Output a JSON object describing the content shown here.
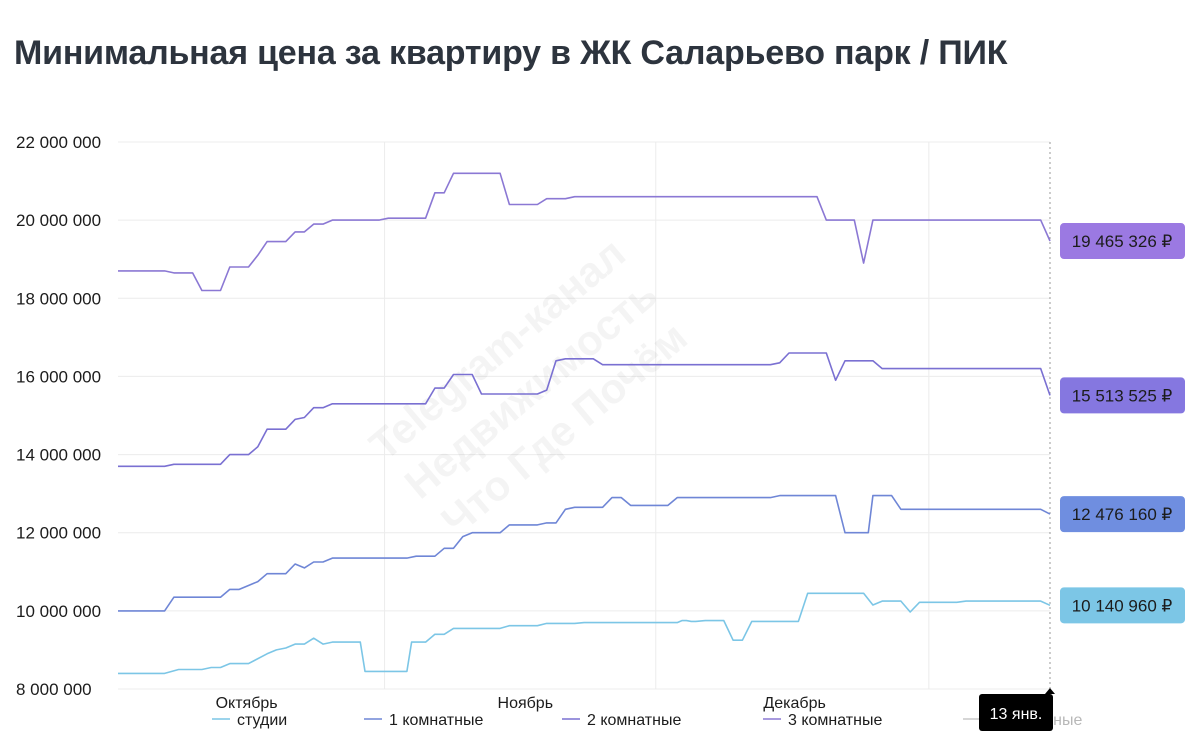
{
  "header": {
    "title": "Минимальная цена за квартиру в ЖК Саларьево парк / ПИК"
  },
  "watermark": [
    "Telegram-канал",
    "Недвижимость",
    "Что Где Почём"
  ],
  "tooltip": {
    "date_label": "13 янв."
  },
  "colors": {
    "studio": "#7cc6e6",
    "room1": "#6f86d6",
    "room2": "#7a70d2",
    "room3": "#8b78d4",
    "grid": "#ececec",
    "badge_studio": "#7cc6e6",
    "badge_room1": "#6f8ee0",
    "badge_room2": "#8577e0",
    "badge_room3": "#9b79e2",
    "tooltip_bg": "#000000"
  },
  "chart_data": {
    "type": "line",
    "title": "Минимальная цена за квартиру в ЖК Саларьево парк / ПИК",
    "xlabel": "",
    "ylabel": "",
    "x_range": [
      0,
      100
    ],
    "x_unit_note": "",
    "ylim": [
      8000000,
      22000000
    ],
    "y_ticks": [
      8000000,
      10000000,
      12000000,
      14000000,
      16000000,
      18000000,
      20000000,
      22000000
    ],
    "y_tick_labels": [
      "8 000 000",
      "10 000 000",
      "12 000 000",
      "14 000 000",
      "16 000 000",
      "18 000 000",
      "20 000 000",
      "22 000 000"
    ],
    "x_ticks": [
      {
        "label": "Октябрь",
        "x": 13.8
      },
      {
        "label": "Ноябрь",
        "x": 43.7
      },
      {
        "label": "Декабрь",
        "x": 72.6
      }
    ],
    "x_grid": [
      28.6,
      57.7,
      87.0
    ],
    "grid": true,
    "legend_position": "bottom",
    "legend": [
      "студии",
      "1 комнатные",
      "2 комнатные",
      "3 комнатные",
      "4 комнатные"
    ],
    "series": [
      {
        "name": "студии",
        "color_key": "studio",
        "end_label": "10 140 960 ₽",
        "points": [
          [
            0,
            8400000
          ],
          [
            5,
            8400000
          ],
          [
            6.5,
            8500000
          ],
          [
            9,
            8500000
          ],
          [
            10,
            8550000
          ],
          [
            11,
            8550000
          ],
          [
            12,
            8650000
          ],
          [
            14,
            8650000
          ],
          [
            16,
            8900000
          ],
          [
            17,
            9000000
          ],
          [
            18,
            9050000
          ],
          [
            19,
            9150000
          ],
          [
            20,
            9150000
          ],
          [
            21,
            9300000
          ],
          [
            22,
            9150000
          ],
          [
            23,
            9200000
          ],
          [
            26,
            9200000
          ],
          [
            26.5,
            8450000
          ],
          [
            31,
            8450000
          ],
          [
            31.5,
            9200000
          ],
          [
            33,
            9200000
          ],
          [
            34,
            9400000
          ],
          [
            35,
            9400000
          ],
          [
            36,
            9550000
          ],
          [
            41,
            9550000
          ],
          [
            42,
            9620000
          ],
          [
            45,
            9620000
          ],
          [
            46,
            9680000
          ],
          [
            49,
            9680000
          ],
          [
            50,
            9700000
          ],
          [
            60,
            9700000
          ],
          [
            60.5,
            9750000
          ],
          [
            61,
            9750000
          ],
          [
            61.5,
            9730000
          ],
          [
            62,
            9730000
          ],
          [
            63,
            9750000
          ],
          [
            65,
            9750000
          ],
          [
            66,
            9250000
          ],
          [
            67,
            9250000
          ],
          [
            68,
            9730000
          ],
          [
            73,
            9730000
          ],
          [
            74,
            10450000
          ],
          [
            75,
            10450000
          ],
          [
            77,
            10450000
          ],
          [
            80,
            10450000
          ],
          [
            81,
            10150000
          ],
          [
            82,
            10250000
          ],
          [
            84,
            10250000
          ],
          [
            85,
            9970000
          ],
          [
            86,
            10220000
          ],
          [
            87,
            10220000
          ],
          [
            90,
            10220000
          ],
          [
            91,
            10250000
          ],
          [
            98,
            10250000
          ],
          [
            99,
            10250000
          ],
          [
            100,
            10140960
          ]
        ]
      },
      {
        "name": "1 комнатные",
        "color_key": "room1",
        "end_label": "12 476 160 ₽",
        "points": [
          [
            0,
            10000000
          ],
          [
            5,
            10000000
          ],
          [
            6,
            10350000
          ],
          [
            11,
            10350000
          ],
          [
            12,
            10550000
          ],
          [
            13,
            10550000
          ],
          [
            14,
            10650000
          ],
          [
            15,
            10750000
          ],
          [
            16,
            10950000
          ],
          [
            18,
            10950000
          ],
          [
            19,
            11200000
          ],
          [
            20,
            11100000
          ],
          [
            21,
            11250000
          ],
          [
            22,
            11250000
          ],
          [
            23,
            11350000
          ],
          [
            31,
            11350000
          ],
          [
            32,
            11400000
          ],
          [
            34,
            11400000
          ],
          [
            35,
            11600000
          ],
          [
            36,
            11600000
          ],
          [
            37,
            11900000
          ],
          [
            38,
            12000000
          ],
          [
            41,
            12000000
          ],
          [
            42,
            12200000
          ],
          [
            45,
            12200000
          ],
          [
            46,
            12250000
          ],
          [
            47,
            12250000
          ],
          [
            48,
            12600000
          ],
          [
            49,
            12650000
          ],
          [
            52,
            12650000
          ],
          [
            53,
            12900000
          ],
          [
            54,
            12900000
          ],
          [
            55,
            12700000
          ],
          [
            59,
            12700000
          ],
          [
            60,
            12900000
          ],
          [
            70,
            12900000
          ],
          [
            71,
            12950000
          ],
          [
            75,
            12950000
          ],
          [
            76,
            12950000
          ],
          [
            77,
            12950000
          ],
          [
            78,
            12000000
          ],
          [
            80,
            12000000
          ],
          [
            80.5,
            12000000
          ],
          [
            81,
            12950000
          ],
          [
            82,
            12950000
          ],
          [
            83,
            12950000
          ],
          [
            84,
            12600000
          ],
          [
            86,
            12600000
          ],
          [
            88,
            12600000
          ],
          [
            99,
            12600000
          ],
          [
            100,
            12476160
          ]
        ]
      },
      {
        "name": "2 комнатные",
        "color_key": "room2",
        "end_label": "15 513 525 ₽",
        "points": [
          [
            0,
            13700000
          ],
          [
            5,
            13700000
          ],
          [
            6,
            13750000
          ],
          [
            11,
            13750000
          ],
          [
            12,
            14000000
          ],
          [
            14,
            14000000
          ],
          [
            15,
            14200000
          ],
          [
            16,
            14650000
          ],
          [
            18,
            14650000
          ],
          [
            19,
            14900000
          ],
          [
            20,
            14950000
          ],
          [
            21,
            15200000
          ],
          [
            22,
            15200000
          ],
          [
            23,
            15300000
          ],
          [
            31,
            15300000
          ],
          [
            32,
            15300000
          ],
          [
            33,
            15300000
          ],
          [
            34,
            15700000
          ],
          [
            35,
            15700000
          ],
          [
            36,
            16050000
          ],
          [
            38,
            16050000
          ],
          [
            39,
            15550000
          ],
          [
            45,
            15550000
          ],
          [
            46,
            15650000
          ],
          [
            47,
            16400000
          ],
          [
            48,
            16450000
          ],
          [
            51,
            16450000
          ],
          [
            52,
            16300000
          ],
          [
            60,
            16300000
          ],
          [
            70,
            16300000
          ],
          [
            71,
            16350000
          ],
          [
            72,
            16600000
          ],
          [
            76,
            16600000
          ],
          [
            77,
            15900000
          ],
          [
            78,
            16400000
          ],
          [
            80,
            16400000
          ],
          [
            81,
            16400000
          ],
          [
            82,
            16200000
          ],
          [
            86,
            16200000
          ],
          [
            95,
            16200000
          ],
          [
            99,
            16200000
          ],
          [
            100,
            15513525
          ]
        ]
      },
      {
        "name": "3 комнатные",
        "color_key": "room3",
        "end_label": "19 465 326 ₽",
        "points": [
          [
            0,
            18700000
          ],
          [
            5,
            18700000
          ],
          [
            6,
            18650000
          ],
          [
            8,
            18650000
          ],
          [
            9,
            18200000
          ],
          [
            11,
            18200000
          ],
          [
            12,
            18800000
          ],
          [
            14,
            18800000
          ],
          [
            15,
            19100000
          ],
          [
            16,
            19450000
          ],
          [
            18,
            19450000
          ],
          [
            19,
            19700000
          ],
          [
            20,
            19700000
          ],
          [
            21,
            19900000
          ],
          [
            22,
            19900000
          ],
          [
            23,
            20000000
          ],
          [
            28,
            20000000
          ],
          [
            29,
            20050000
          ],
          [
            33,
            20050000
          ],
          [
            34,
            20700000
          ],
          [
            35,
            20700000
          ],
          [
            36,
            21200000
          ],
          [
            41,
            21200000
          ],
          [
            42,
            20400000
          ],
          [
            45,
            20400000
          ],
          [
            46,
            20550000
          ],
          [
            48,
            20550000
          ],
          [
            49,
            20600000
          ],
          [
            59,
            20600000
          ],
          [
            60,
            20600000
          ],
          [
            75,
            20600000
          ],
          [
            76,
            20000000
          ],
          [
            79,
            20000000
          ],
          [
            80,
            18900000
          ],
          [
            81,
            20000000
          ],
          [
            85,
            20000000
          ],
          [
            99,
            20000000
          ],
          [
            100,
            19465326
          ]
        ]
      },
      {
        "name": "4 комнатные",
        "color_key": "room3",
        "hidden": true,
        "points": []
      }
    ]
  }
}
